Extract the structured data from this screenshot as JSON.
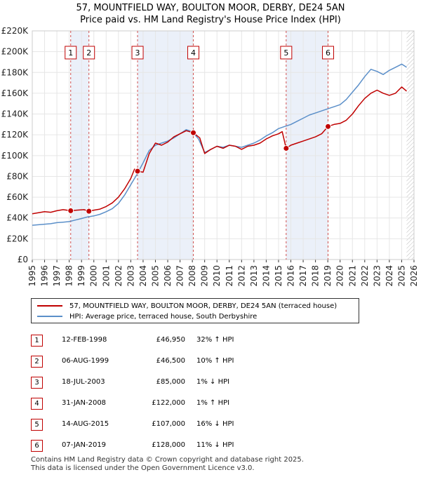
{
  "title_line1": "57, MOUNTFIELD WAY, BOULTON MOOR, DERBY, DE24 5AN",
  "title_line2": "Price paid vs. HM Land Registry's House Price Index (HPI)",
  "chart_data": {
    "type": "line",
    "xlim": [
      1995,
      2026
    ],
    "ylim": [
      0,
      220000
    ],
    "x_ticks": [
      1995,
      1996,
      1997,
      1998,
      1999,
      2000,
      2001,
      2002,
      2003,
      2004,
      2005,
      2006,
      2007,
      2008,
      2009,
      2010,
      2011,
      2012,
      2013,
      2014,
      2015,
      2016,
      2017,
      2018,
      2019,
      2020,
      2021,
      2022,
      2023,
      2024,
      2025,
      2026
    ],
    "y_ticks": [
      {
        "value": 0,
        "label": "£0"
      },
      {
        "value": 20000,
        "label": "£20K"
      },
      {
        "value": 40000,
        "label": "£40K"
      },
      {
        "value": 60000,
        "label": "£60K"
      },
      {
        "value": 80000,
        "label": "£80K"
      },
      {
        "value": 100000,
        "label": "£100K"
      },
      {
        "value": 120000,
        "label": "£120K"
      },
      {
        "value": 140000,
        "label": "£140K"
      },
      {
        "value": 160000,
        "label": "£160K"
      },
      {
        "value": 180000,
        "label": "£180K"
      },
      {
        "value": 200000,
        "label": "£200K"
      },
      {
        "value": 220000,
        "label": "£220K"
      }
    ],
    "series": [
      {
        "name": "57, MOUNTFIELD WAY, BOULTON MOOR, DERBY, DE24 5AN (terraced house)",
        "color": "#c00000",
        "x": [
          1995,
          1995.5,
          1996,
          1996.5,
          1997,
          1997.5,
          1998.12,
          1998.6,
          1999.2,
          1999.6,
          2000,
          2000.5,
          2001,
          2001.5,
          2002,
          2002.5,
          2003,
          2003.3,
          2003.55,
          2004,
          2004.5,
          2005,
          2005.5,
          2006,
          2006.5,
          2007,
          2007.5,
          2008.08,
          2008.6,
          2009,
          2009.5,
          2010,
          2010.5,
          2011,
          2011.5,
          2012,
          2012.5,
          2013,
          2013.5,
          2014,
          2014.5,
          2015,
          2015.3,
          2015.62,
          2016,
          2016.5,
          2017,
          2017.5,
          2018,
          2018.5,
          2019.02,
          2019.5,
          2020,
          2020.5,
          2021,
          2021.5,
          2022,
          2022.5,
          2023,
          2023.5,
          2024,
          2024.5,
          2025,
          2025.4
        ],
        "values": [
          44000,
          45000,
          46000,
          45500,
          47000,
          48000,
          46950,
          47500,
          48000,
          46500,
          47500,
          48500,
          51000,
          54500,
          60000,
          68000,
          78000,
          87000,
          85000,
          84000,
          102000,
          112000,
          110000,
          113000,
          118000,
          121000,
          124000,
          122000,
          117000,
          102000,
          106000,
          109000,
          107000,
          110000,
          109000,
          106000,
          109000,
          110000,
          112000,
          116000,
          119000,
          121000,
          123000,
          107000,
          110000,
          112000,
          114000,
          116000,
          118000,
          121000,
          128000,
          130000,
          131000,
          134000,
          140000,
          148000,
          155000,
          160000,
          163000,
          160000,
          158000,
          160000,
          166000,
          162000
        ]
      },
      {
        "name": "HPI: Average price, terraced house, South Derbyshire",
        "color": "#5b8fc9",
        "x": [
          1995,
          1995.5,
          1996,
          1996.5,
          1997,
          1997.5,
          1998,
          1998.5,
          1999,
          1999.5,
          2000,
          2000.5,
          2001,
          2001.5,
          2002,
          2002.5,
          2003,
          2003.5,
          2004,
          2004.5,
          2005,
          2005.5,
          2006,
          2006.5,
          2007,
          2007.5,
          2008,
          2008.5,
          2009,
          2009.5,
          2010,
          2010.5,
          2011,
          2011.5,
          2012,
          2012.5,
          2013,
          2013.5,
          2014,
          2014.5,
          2015,
          2015.5,
          2016,
          2016.5,
          2017,
          2017.5,
          2018,
          2018.5,
          2019,
          2019.5,
          2020,
          2020.5,
          2021,
          2021.5,
          2022,
          2022.5,
          2023,
          2023.5,
          2024,
          2024.5,
          2025,
          2025.4
        ],
        "values": [
          33000,
          33500,
          34000,
          34500,
          35500,
          36000,
          36500,
          38000,
          39500,
          41000,
          42000,
          43500,
          46000,
          49000,
          54000,
          62000,
          72000,
          82000,
          93000,
          105000,
          110000,
          112000,
          114000,
          117000,
          121000,
          125000,
          123000,
          116000,
          103000,
          106000,
          109000,
          108000,
          110000,
          109000,
          108000,
          110000,
          112000,
          115000,
          119000,
          122000,
          126000,
          128000,
          130000,
          133000,
          136000,
          139000,
          141000,
          143000,
          145000,
          147000,
          149000,
          154000,
          161000,
          168000,
          176000,
          183000,
          181000,
          178000,
          182000,
          185000,
          188000,
          185000
        ]
      }
    ],
    "sales": [
      {
        "id": "1",
        "x": 1998.12,
        "value": 46950
      },
      {
        "id": "2",
        "x": 1999.6,
        "value": 46500
      },
      {
        "id": "3",
        "x": 2003.55,
        "value": 85000
      },
      {
        "id": "4",
        "x": 2008.08,
        "value": 122000
      },
      {
        "id": "5",
        "x": 2015.62,
        "value": 107000
      },
      {
        "id": "6",
        "x": 2019.02,
        "value": 128000
      }
    ],
    "shaded_regions": [
      [
        1998.12,
        1999.6
      ],
      [
        2003.55,
        2008.08
      ],
      [
        2015.62,
        2019.02
      ]
    ],
    "forecast_from": 2025.4
  },
  "legend": {
    "property_label": "57, MOUNTFIELD WAY, BOULTON MOOR, DERBY, DE24 5AN (terraced house)",
    "hpi_label": "HPI: Average price, terraced house, South Derbyshire"
  },
  "transactions": [
    {
      "num": "1",
      "date": "12-FEB-1998",
      "price": "£46,950",
      "hpi": "32% ↑ HPI"
    },
    {
      "num": "2",
      "date": "06-AUG-1999",
      "price": "£46,500",
      "hpi": "10% ↑ HPI"
    },
    {
      "num": "3",
      "date": "18-JUL-2003",
      "price": "£85,000",
      "hpi": "1% ↓ HPI"
    },
    {
      "num": "4",
      "date": "31-JAN-2008",
      "price": "£122,000",
      "hpi": "1% ↑ HPI"
    },
    {
      "num": "5",
      "date": "14-AUG-2015",
      "price": "£107,000",
      "hpi": "16% ↓ HPI"
    },
    {
      "num": "6",
      "date": "07-JAN-2019",
      "price": "£128,000",
      "hpi": "11% ↓ HPI"
    }
  ],
  "footer_line1": "Contains HM Land Registry data © Crown copyright and database right 2025.",
  "footer_line2": "This data is licensed under the Open Government Licence v3.0."
}
